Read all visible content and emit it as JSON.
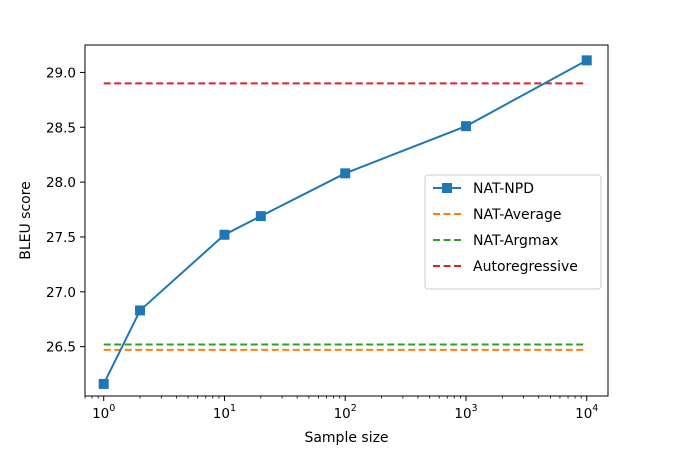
{
  "chart_data": {
    "type": "line",
    "title": "",
    "xlabel": "Sample size",
    "ylabel": "BLEU score",
    "xscale": "log",
    "xlim": [
      0.7,
      15000
    ],
    "ylim": [
      26.05,
      29.25
    ],
    "x_ticks": [
      1,
      10,
      100,
      1000,
      10000
    ],
    "x_tick_labels": [
      {
        "base": "10",
        "exp": "0"
      },
      {
        "base": "10",
        "exp": "1"
      },
      {
        "base": "10",
        "exp": "2"
      },
      {
        "base": "10",
        "exp": "3"
      },
      {
        "base": "10",
        "exp": "4"
      }
    ],
    "y_ticks": [
      26.5,
      27.0,
      27.5,
      28.0,
      28.5,
      29.0
    ],
    "y_tick_labels": [
      "26.5",
      "27.0",
      "27.5",
      "28.0",
      "28.5",
      "29.0"
    ],
    "grid": false,
    "legend": {
      "placement": "center-right"
    },
    "series": [
      {
        "name": "NAT-NPD",
        "color": "#1f77b4",
        "style": "solid",
        "marker": "square",
        "x": [
          1,
          2,
          10,
          20,
          100,
          1000,
          10000
        ],
        "y": [
          26.16,
          26.83,
          27.52,
          27.69,
          28.08,
          28.51,
          29.11
        ]
      },
      {
        "name": "NAT-Average",
        "color": "#ff7f0e",
        "style": "dashed",
        "x": [
          1,
          10000
        ],
        "y": [
          26.47,
          26.47
        ]
      },
      {
        "name": "NAT-Argmax",
        "color": "#2ca02c",
        "style": "dashed",
        "x": [
          1,
          10000
        ],
        "y": [
          26.52,
          26.52
        ]
      },
      {
        "name": "Autoregressive",
        "color": "#d62728",
        "style": "dashed",
        "x": [
          1,
          10000
        ],
        "y": [
          28.9,
          28.9
        ]
      }
    ]
  }
}
